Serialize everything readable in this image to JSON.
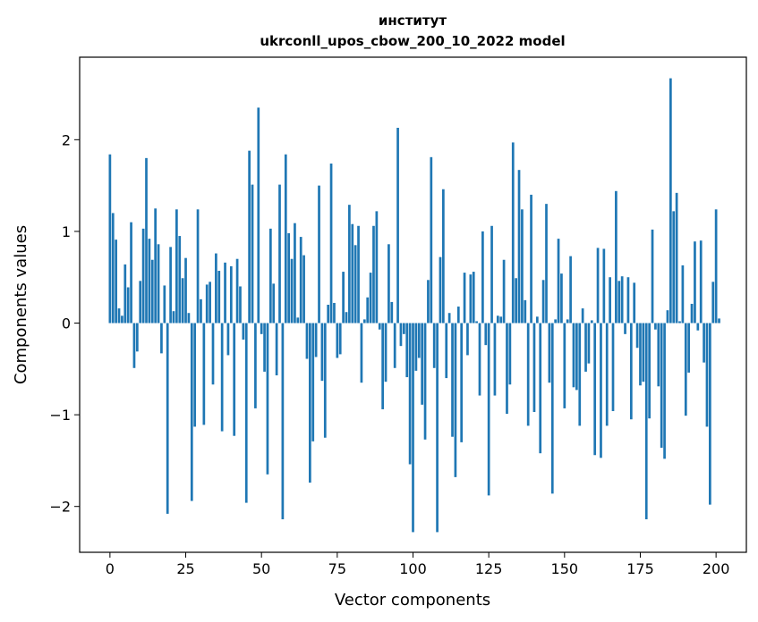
{
  "chart_data": {
    "type": "bar",
    "title_line1": "институт",
    "title_line2": "ukrconll_upos_cbow_200_10_2022 model",
    "xlabel": "Vector components",
    "ylabel": "Components values",
    "xlim": [
      -10,
      210
    ],
    "ylim": [
      -2.5,
      2.9
    ],
    "xticks": [
      0,
      25,
      50,
      75,
      100,
      125,
      150,
      175,
      200
    ],
    "xtick_labels": [
      "0",
      "25",
      "50",
      "75",
      "100",
      "125",
      "150",
      "175",
      "200"
    ],
    "yticks": [
      -2,
      -1,
      0,
      1,
      2
    ],
    "ytick_labels": [
      "−2",
      "−1",
      "0",
      "1",
      "2"
    ],
    "bar_color": "#1f77b4",
    "grid": false,
    "values": [
      1.84,
      1.2,
      0.91,
      0.16,
      0.08,
      0.64,
      0.39,
      1.1,
      -0.49,
      -0.31,
      0.46,
      1.03,
      1.8,
      0.92,
      0.69,
      1.25,
      0.86,
      -0.33,
      0.41,
      -2.08,
      0.83,
      0.13,
      1.24,
      0.95,
      0.49,
      0.71,
      0.11,
      -1.94,
      -1.13,
      1.24,
      0.26,
      -1.11,
      0.42,
      0.45,
      -0.67,
      0.76,
      0.57,
      -1.18,
      0.66,
      -0.35,
      0.62,
      -1.23,
      0.7,
      0.4,
      -0.18,
      -1.96,
      1.88,
      1.51,
      -0.93,
      2.35,
      -0.12,
      -0.53,
      -1.65,
      1.03,
      0.43,
      -0.57,
      1.51,
      -2.14,
      1.84,
      0.98,
      0.7,
      1.09,
      0.06,
      0.94,
      0.74,
      -0.39,
      -1.74,
      -1.29,
      -0.37,
      1.5,
      -0.63,
      -1.25,
      0.2,
      1.74,
      0.22,
      -0.38,
      -0.34,
      0.56,
      0.12,
      1.29,
      1.08,
      0.85,
      1.06,
      -0.65,
      0.04,
      0.28,
      0.55,
      1.06,
      1.22,
      -0.07,
      -0.94,
      -0.64,
      0.86,
      0.23,
      -0.49,
      2.13,
      -0.25,
      -0.12,
      -0.59,
      -1.54,
      -2.28,
      -0.52,
      -0.38,
      -0.89,
      -1.27,
      0.47,
      1.81,
      -0.49,
      -2.28,
      0.72,
      1.46,
      -0.6,
      0.11,
      -1.24,
      -1.68,
      0.18,
      -1.3,
      0.55,
      -0.35,
      0.53,
      0.56,
      0.02,
      -0.79,
      1.0,
      -0.24,
      -1.88,
      1.06,
      -0.79,
      0.08,
      0.07,
      0.69,
      -0.99,
      -0.67,
      1.97,
      0.49,
      1.67,
      1.24,
      0.25,
      -1.12,
      1.4,
      -0.97,
      0.07,
      -1.42,
      0.47,
      1.3,
      -0.65,
      -1.86,
      0.04,
      0.92,
      0.54,
      -0.93,
      0.04,
      0.73,
      -0.7,
      -0.73,
      -1.12,
      0.16,
      -0.53,
      -0.44,
      0.03,
      -1.44,
      0.82,
      -1.47,
      0.81,
      -1.12,
      0.5,
      -0.96,
      1.44,
      0.46,
      0.51,
      -0.12,
      0.5,
      -1.05,
      0.44,
      -0.27,
      -0.68,
      -0.64,
      -2.14,
      -1.04,
      1.02,
      -0.07,
      -0.69,
      -1.36,
      -1.48,
      0.14,
      2.67,
      1.22,
      1.42,
      0.02,
      0.63,
      -1.01,
      -0.54,
      0.21,
      0.89,
      -0.08,
      0.9,
      -0.43,
      -1.13,
      -1.98,
      0.45,
      1.24,
      0.05
    ]
  }
}
